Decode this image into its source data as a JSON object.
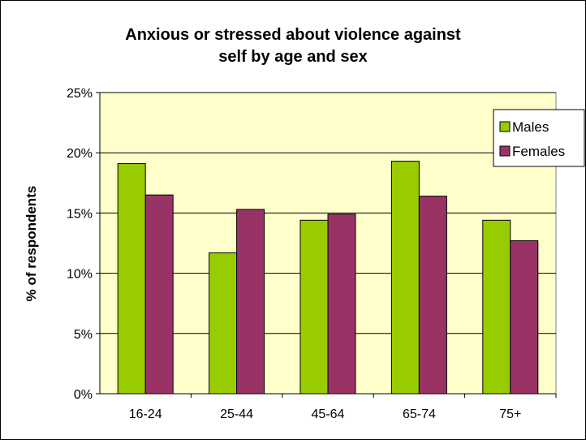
{
  "chart_data": {
    "type": "bar",
    "title_lines": [
      "Anxious or stressed about violence against",
      "self by age and sex"
    ],
    "xlabel": "",
    "ylabel": "% of respondents",
    "categories": [
      "16-24",
      "25-44",
      "45-64",
      "65-74",
      "75+"
    ],
    "series": [
      {
        "name": "Males",
        "values": [
          19.1,
          11.7,
          14.4,
          19.3,
          14.4
        ],
        "color": "#99cc00"
      },
      {
        "name": "Females",
        "values": [
          16.5,
          15.3,
          14.9,
          16.4,
          12.7
        ],
        "color": "#993366"
      }
    ],
    "ylim": [
      0,
      25
    ],
    "yticks": [
      "0%",
      "5%",
      "10%",
      "15%",
      "20%",
      "25%"
    ],
    "grid": true,
    "legend": "right",
    "plot_background": "#ffffcc"
  }
}
